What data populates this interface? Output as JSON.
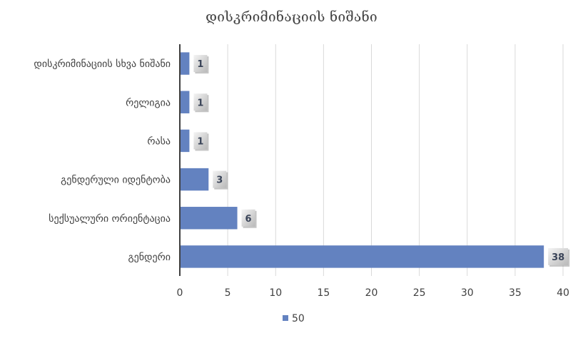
{
  "chart_data": {
    "type": "bar",
    "orientation": "horizontal",
    "title": "დისკრიმინაციის ნიშანი",
    "categories": [
      "დისკრიმინაციის სხვა ნიშანი",
      "რელიგია",
      "რასა",
      "გენდერული იდენტობა",
      "სექსუალური ორიენტაცია",
      "გენდერი"
    ],
    "series": [
      {
        "name": "50",
        "values": [
          1,
          1,
          1,
          3,
          6,
          38
        ],
        "color": "#6382c0"
      }
    ],
    "xlim": [
      0,
      40
    ],
    "xticks": [
      "0",
      "5",
      "10",
      "15",
      "20",
      "25",
      "30",
      "35",
      "40"
    ],
    "grid": "vertical",
    "data_labels": true,
    "legend_position": "bottom"
  }
}
